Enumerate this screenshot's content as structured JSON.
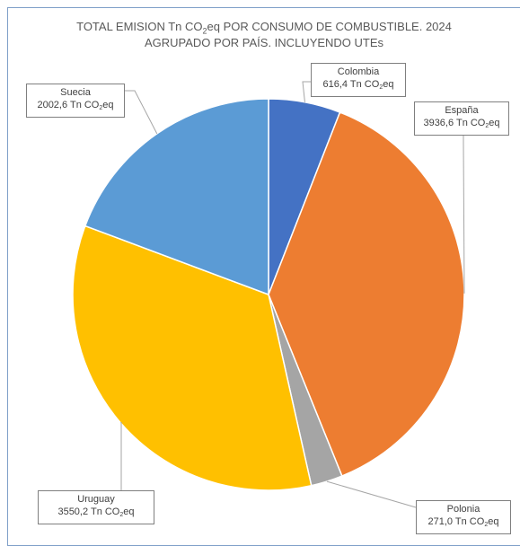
{
  "chart_data": {
    "type": "pie",
    "title_line1_before_sub": "TOTAL EMISION Tn CO",
    "title_line1_sub": "2",
    "title_line1_after_sub": "eq POR CONSUMO DE COMBUSTIBLE. 2024",
    "title_line2": "AGRUPADO POR PAÍS. INCLUYENDO UTEs",
    "unit_prefix": "Tn CO",
    "unit_sub": "2",
    "unit_suffix": "eq",
    "slices": [
      {
        "name": "Colombia",
        "value": 616.4,
        "value_label": "616,4",
        "color": "#4472c4"
      },
      {
        "name": "España",
        "value": 3936.6,
        "value_label": "3936,6",
        "color": "#ed7d31"
      },
      {
        "name": "Polonia",
        "value": 271.0,
        "value_label": "271,0",
        "color": "#a5a5a5"
      },
      {
        "name": "Uruguay",
        "value": 3550.2,
        "value_label": "3550,2",
        "color": "#ffc000"
      },
      {
        "name": "Suecia",
        "value": 2002.6,
        "value_label": "2002,6",
        "color": "#5b9bd5"
      }
    ]
  }
}
